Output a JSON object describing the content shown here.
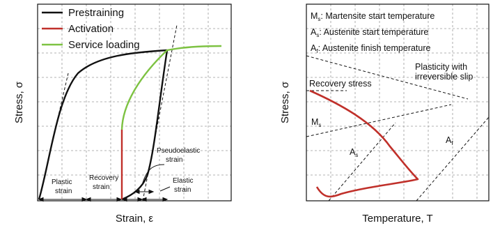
{
  "left_panel": {
    "ylabel": "Stress, σ",
    "xlabel": "Strain, ε",
    "legend": [
      {
        "label": "Prestraining",
        "color": "#111111"
      },
      {
        "label": "Activation",
        "color": "#c0302a"
      },
      {
        "label": "Service loading",
        "color": "#7dc242"
      }
    ],
    "annotations": {
      "plastic_strain": [
        "Plastic",
        "strain"
      ],
      "recovery_strain": [
        "Recovery",
        "strain"
      ],
      "pseudoelastic_strain": [
        "Pseudoelastic",
        "strain"
      ],
      "elastic_strain": [
        "Elastic",
        "strain"
      ]
    }
  },
  "right_panel": {
    "ylabel": "Stress, σ",
    "xlabel": "Temperature, T",
    "legend_lines": [
      {
        "symbol": "M",
        "sub": "s",
        "text": ": Martensite start temperature"
      },
      {
        "symbol": "A",
        "sub": "s",
        "text": ": Austenite start temperature"
      },
      {
        "symbol": "A",
        "sub": "f",
        "text": ": Austenite finish temperature"
      }
    ],
    "annotations": {
      "plasticity": [
        "Plasticity with",
        "irreversible slip"
      ],
      "recovery_stress": "Recovery stress",
      "ms_label": {
        "symbol": "M",
        "sub": "s"
      },
      "as_label": {
        "symbol": "A",
        "sub": "s"
      },
      "af_label": {
        "symbol": "A",
        "sub": "f"
      }
    },
    "curve_color": "#c0302a"
  }
}
